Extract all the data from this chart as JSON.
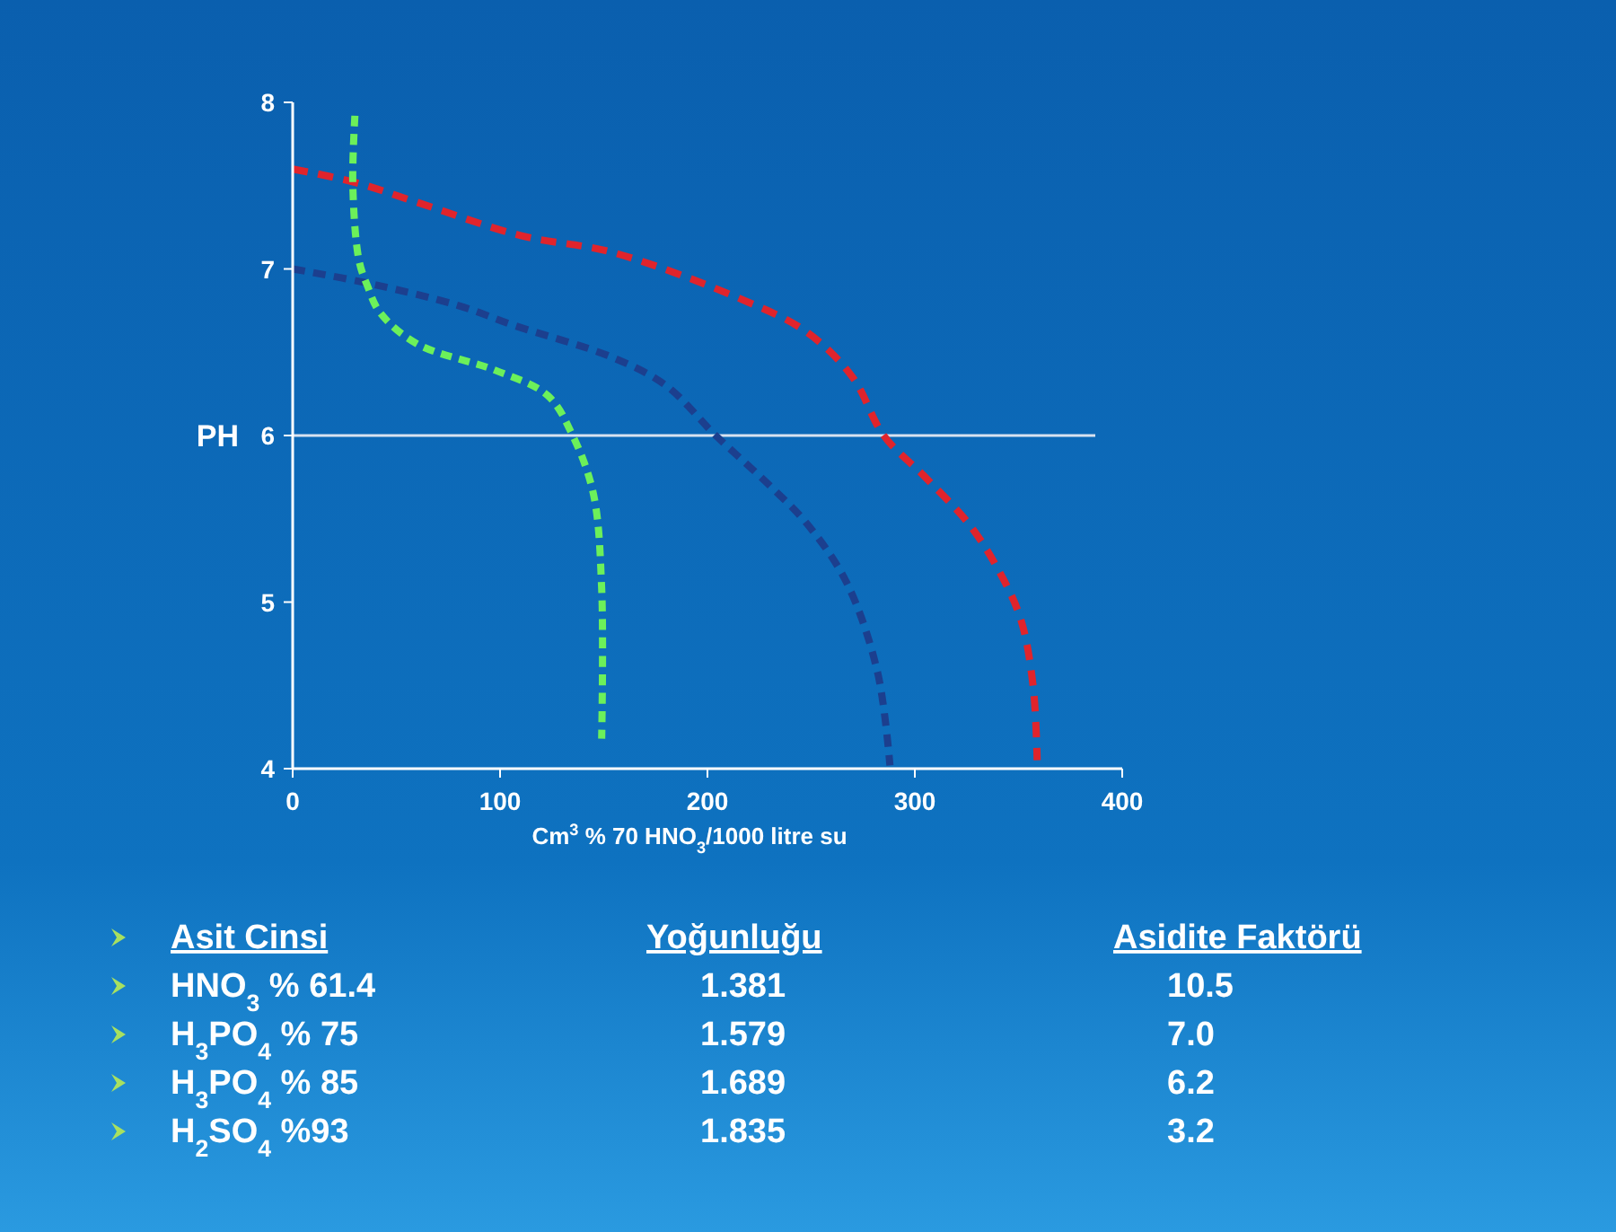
{
  "chart_data": {
    "type": "line",
    "xlabel": "Cm$^{3}$ % 70 HNO$_{3}$/1000 litre su",
    "ylabel": "PH",
    "xlim": [
      0,
      400
    ],
    "ylim": [
      4,
      8
    ],
    "xticks": [
      0,
      100,
      200,
      300,
      400
    ],
    "yticks": [
      4,
      5,
      6,
      7,
      8
    ],
    "grid": false,
    "line_style": "dashed",
    "marker": "none",
    "series": [
      {
        "color": "#e0242c",
        "x": [
          0,
          30,
          60,
          110,
          154,
          216,
          248,
          270,
          285,
          305,
          326,
          340,
          351,
          357,
          359
        ],
        "values": [
          7.6,
          7.52,
          7.4,
          7.2,
          7.1,
          6.82,
          6.62,
          6.35,
          6.0,
          5.75,
          5.47,
          5.2,
          4.9,
          4.5,
          4.05
        ]
      },
      {
        "color": "#1c3f8e",
        "x": [
          0,
          38,
          80,
          107,
          154,
          180,
          204,
          230,
          248,
          267,
          282,
          288
        ],
        "values": [
          7.0,
          6.91,
          6.78,
          6.66,
          6.47,
          6.3,
          6.0,
          5.7,
          5.47,
          5.12,
          4.58,
          4.02
        ]
      },
      {
        "color": "#6cf05a",
        "x": [
          30,
          29,
          32,
          36,
          42,
          60,
          98,
          123,
          135,
          145,
          149,
          149
        ],
        "values": [
          7.92,
          7.5,
          7.05,
          6.9,
          6.74,
          6.55,
          6.39,
          6.24,
          6.0,
          5.65,
          5.08,
          4.18
        ]
      }
    ],
    "ref_lines": [
      {
        "axis": "y",
        "value": 6,
        "color": "#d8e2f0",
        "line_style": "solid"
      }
    ],
    "annotations": [
      "Asit Cinsi",
      "Yoğunluğu",
      "Asidite Faktörü",
      "HNO$_{3}$ % 61.4",
      "1.381",
      "10.5",
      "H$_{3}$PO$_{4}$ % 75",
      "1.579",
      "7.0",
      "H$_{3}$PO$_{4}$ % 85",
      "1.689",
      "6.2",
      "H$_{2}$SO$_{4}$ %93",
      "1.835",
      "3.2"
    ]
  }
}
